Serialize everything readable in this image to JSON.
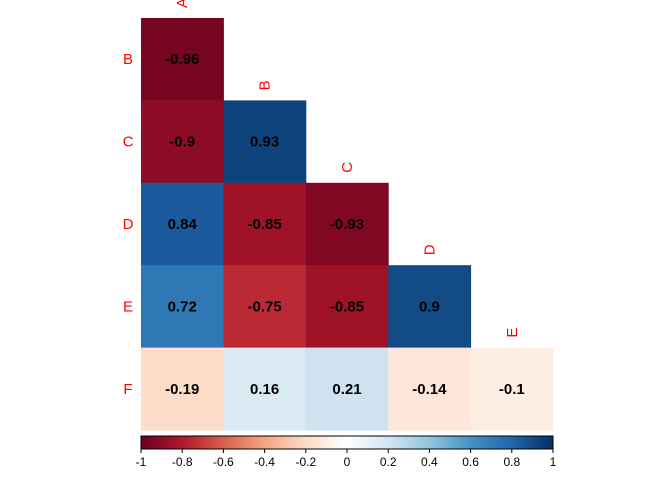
{
  "chart_data": {
    "type": "heatmap",
    "layout": "lower-triangle",
    "row_labels": [
      "B",
      "C",
      "D",
      "E",
      "F"
    ],
    "col_labels": [
      "A",
      "B",
      "C",
      "D",
      "E"
    ],
    "values": [
      [
        -0.96
      ],
      [
        -0.9,
        0.93
      ],
      [
        0.84,
        -0.85,
        -0.93
      ],
      [
        0.72,
        -0.75,
        -0.85,
        0.9
      ],
      [
        -0.19,
        0.16,
        0.21,
        -0.14,
        -0.1
      ]
    ],
    "label_color": "#FF0000",
    "colorbar": {
      "range": [
        -1,
        1
      ],
      "ticks": [
        -1,
        -0.8,
        -0.6,
        -0.4,
        -0.2,
        0,
        0.2,
        0.4,
        0.6,
        0.8,
        1
      ],
      "tick_labels": [
        "-1",
        "-0.8",
        "-0.6",
        "-0.4",
        "-0.2",
        "0",
        "0.2",
        "0.4",
        "0.6",
        "0.8",
        "1"
      ],
      "position": "bottom",
      "colors": [
        "#67001F",
        "#B2182B",
        "#D6604D",
        "#F4A582",
        "#FDDBC7",
        "#FFFFFF",
        "#D1E5F0",
        "#92C5DE",
        "#4393C3",
        "#2166AC",
        "#053061"
      ]
    }
  }
}
